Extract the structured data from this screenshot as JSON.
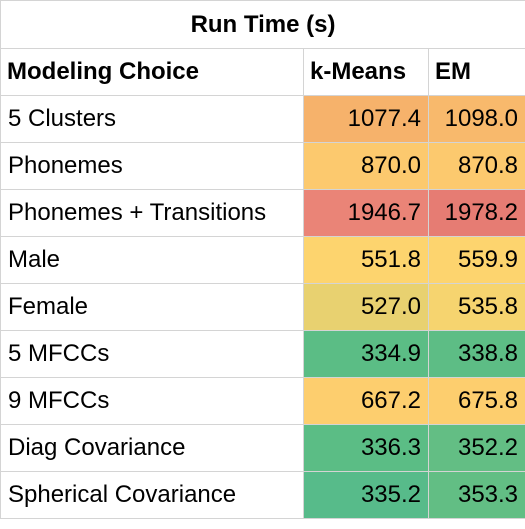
{
  "table": {
    "title": "Run Time (s)",
    "headers": [
      "Modeling Choice",
      "k-Means",
      "EM"
    ],
    "rows": [
      {
        "label": "5 Clusters",
        "kmeans": "1077.4",
        "em": "1098.0",
        "kmeans_color": "#f6b26b",
        "em_color": "#f8b96c"
      },
      {
        "label": "Phonemes",
        "kmeans": "870.0",
        "em": "870.8",
        "kmeans_color": "#fcc96e",
        "em_color": "#fcc96e"
      },
      {
        "label": "Phonemes + Transitions",
        "kmeans": "1946.7",
        "em": "1978.2",
        "kmeans_color": "#ea8477",
        "em_color": "#e67c73"
      },
      {
        "label": "Male",
        "kmeans": "551.8",
        "em": "559.9",
        "kmeans_color": "#fdd46e",
        "em_color": "#fdd46e"
      },
      {
        "label": "Female",
        "kmeans": "527.0",
        "em": "535.8",
        "kmeans_color": "#e8d170",
        "em_color": "#f6d46f"
      },
      {
        "label": "5 MFCCs",
        "kmeans": "334.9",
        "em": "338.8",
        "kmeans_color": "#5bbd85",
        "em_color": "#5dbd85"
      },
      {
        "label": "9 MFCCs",
        "kmeans": "667.2",
        "em": "675.8",
        "kmeans_color": "#fdce6e",
        "em_color": "#fdce6e"
      },
      {
        "label": "Diag Covariance",
        "kmeans": "336.3",
        "em": "352.2",
        "kmeans_color": "#5bbd85",
        "em_color": "#63be84"
      },
      {
        "label": "Spherical Covariance",
        "kmeans": "335.2",
        "em": "353.3",
        "kmeans_color": "#57bb8a",
        "em_color": "#62be84"
      }
    ]
  }
}
